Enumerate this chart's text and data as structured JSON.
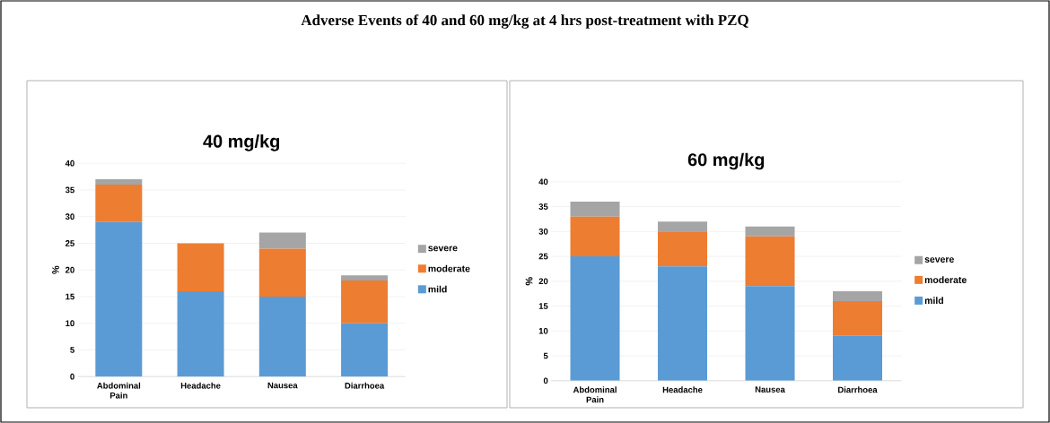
{
  "chart_data": [
    {
      "type": "bar",
      "title": "40 mg/kg",
      "ylabel": "%",
      "annotations": [
        "Adverse Events of 40 and 60 mg/kg at 4 hrs post-treatment with PZQ"
      ],
      "stacked": true,
      "grid": "y",
      "legend": "right",
      "categories": [
        "Abdominal Pain",
        "Headache",
        "Nausea",
        "Diarrhoea"
      ],
      "ylim": [
        0,
        40
      ],
      "yticks": [
        0,
        5,
        10,
        15,
        20,
        25,
        30,
        35,
        40
      ],
      "series": [
        {
          "name": "mild",
          "color": "#5b9bd5",
          "values": [
            29,
            16,
            15,
            10
          ]
        },
        {
          "name": "moderate",
          "color": "#ed7d31",
          "values": [
            7,
            9,
            9,
            8
          ]
        },
        {
          "name": "severe",
          "color": "#a5a5a5",
          "values": [
            1,
            0,
            3,
            1
          ]
        }
      ]
    },
    {
      "type": "bar",
      "title": "60 mg/kg",
      "ylabel": "%",
      "stacked": true,
      "grid": "y",
      "legend": "right",
      "categories": [
        "Abdominal Pain",
        "Headache",
        "Nausea",
        "Diarrhoea"
      ],
      "ylim": [
        0,
        40
      ],
      "yticks": [
        0,
        5,
        10,
        15,
        20,
        25,
        30,
        35,
        40
      ],
      "series": [
        {
          "name": "mild",
          "color": "#5b9bd5",
          "values": [
            25,
            23,
            19,
            9
          ]
        },
        {
          "name": "moderate",
          "color": "#ed7d31",
          "values": [
            8,
            7,
            10,
            7
          ]
        },
        {
          "name": "severe",
          "color": "#a5a5a5",
          "values": [
            3,
            2,
            2,
            2
          ]
        }
      ]
    }
  ]
}
